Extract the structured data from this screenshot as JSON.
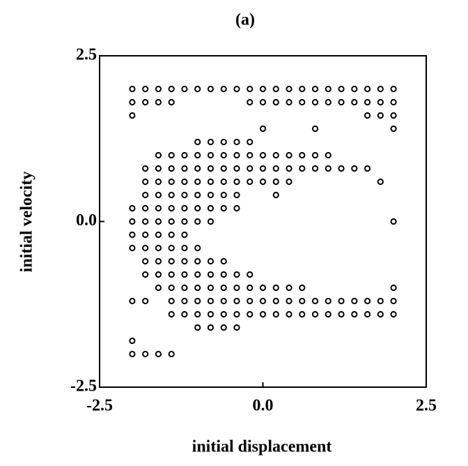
{
  "chart_data": {
    "type": "scatter",
    "title": "(a)",
    "x_label": "initial displacement",
    "y_label": "initial velocity",
    "xlim": [
      -2.5,
      2.5
    ],
    "ylim": [
      -2.5,
      2.5
    ],
    "xticks": [
      -2.5,
      {
        "value": 0,
        "label": "0.0"
      },
      2.5
    ],
    "yticks": [
      -2.5,
      {
        "value": 0,
        "label": "0.0"
      },
      2.5
    ],
    "color": "#000000",
    "x": [
      -2,
      -1.8,
      -1.6,
      -1.4,
      -1.2,
      -1,
      -0.8,
      -0.6,
      -0.4,
      -0.2,
      0,
      0.2,
      0.4,
      0.6,
      0.8,
      1,
      1.2,
      1.4,
      1.6,
      1.8,
      2,
      -2,
      -1.8,
      -1.6,
      -1.4,
      -0.2,
      0,
      0.2,
      0.4,
      0.6,
      0.8,
      1,
      1.2,
      1.4,
      1.6,
      1.8,
      2,
      -2,
      1.6,
      1.8,
      2,
      0,
      0.8,
      2,
      -1,
      -0.8,
      -0.6,
      -0.4,
      -0.2,
      -1.6,
      -1.4,
      -1.2,
      -1,
      -0.8,
      -0.6,
      -0.4,
      -0.2,
      0,
      0.2,
      0.4,
      0.6,
      0.8,
      1,
      -1.8,
      -1.6,
      -1.4,
      -1.2,
      -1,
      -0.8,
      -0.6,
      -0.4,
      -0.2,
      0,
      0.2,
      0.4,
      0.6,
      0.8,
      1,
      1.2,
      1.4,
      1.6,
      -1.8,
      -1.6,
      -1.4,
      -1.2,
      -1,
      -0.8,
      -0.6,
      -0.4,
      -0.2,
      0,
      0.2,
      0.4,
      1.8,
      -1.8,
      -1.6,
      -1.4,
      -1.2,
      -1,
      -0.8,
      -0.6,
      -0.4,
      0.2,
      -2,
      -1.8,
      -1.6,
      -1.4,
      -1.2,
      -1,
      -0.8,
      -0.6,
      -0.4,
      -2,
      -1.8,
      -1.6,
      -1.4,
      -1.2,
      -1,
      -0.8,
      2,
      -2,
      -1.8,
      -1.6,
      -1.4,
      -1.2,
      -2,
      -1.8,
      -1.6,
      -1.4,
      -1.2,
      -1,
      -1.8,
      -1.6,
      -1.4,
      -1.2,
      -1,
      -0.8,
      -0.6,
      -1.8,
      -1.6,
      -1.4,
      -1.2,
      -1,
      -0.8,
      -0.6,
      -0.4,
      -0.2,
      -1.6,
      -1.4,
      -1.2,
      -1,
      -0.8,
      -0.6,
      -0.4,
      -0.2,
      0,
      0.2,
      0.4,
      0.6,
      2,
      -2,
      -1.8,
      -1.4,
      -1.2,
      -1,
      -0.8,
      -0.6,
      -0.4,
      -0.2,
      0,
      0.2,
      0.4,
      0.6,
      0.8,
      1,
      1.2,
      1.4,
      1.6,
      1.8,
      2,
      -1.4,
      -1.2,
      -1,
      -0.8,
      -0.6,
      -0.4,
      -0.2,
      0,
      0.2,
      0.4,
      0.6,
      0.8,
      1,
      1.2,
      1.4,
      1.6,
      1.8,
      2,
      -1,
      -0.8,
      -0.6,
      -0.4,
      -2,
      -2,
      -1.8,
      -1.6,
      -1.4
    ],
    "y": [
      2,
      2,
      2,
      2,
      2,
      2,
      2,
      2,
      2,
      2,
      2,
      2,
      2,
      2,
      2,
      2,
      2,
      2,
      2,
      2,
      2,
      1.8,
      1.8,
      1.8,
      1.8,
      1.8,
      1.8,
      1.8,
      1.8,
      1.8,
      1.8,
      1.8,
      1.8,
      1.8,
      1.8,
      1.8,
      1.8,
      1.6,
      1.6,
      1.6,
      1.6,
      1.4,
      1.4,
      1.4,
      1.2,
      1.2,
      1.2,
      1.2,
      1.2,
      1,
      1,
      1,
      1,
      1,
      1,
      1,
      1,
      1,
      1,
      1,
      1,
      1,
      1,
      0.8,
      0.8,
      0.8,
      0.8,
      0.8,
      0.8,
      0.8,
      0.8,
      0.8,
      0.8,
      0.8,
      0.8,
      0.8,
      0.8,
      0.8,
      0.8,
      0.8,
      0.8,
      0.6,
      0.6,
      0.6,
      0.6,
      0.6,
      0.6,
      0.6,
      0.6,
      0.6,
      0.6,
      0.6,
      0.6,
      0.6,
      0.4,
      0.4,
      0.4,
      0.4,
      0.4,
      0.4,
      0.4,
      0.4,
      0.4,
      0.2,
      0.2,
      0.2,
      0.2,
      0.2,
      0.2,
      0.2,
      0.2,
      0.2,
      0,
      0,
      0,
      0,
      0,
      0,
      0,
      0,
      -0.2,
      -0.2,
      -0.2,
      -0.2,
      -0.2,
      -0.4,
      -0.4,
      -0.4,
      -0.4,
      -0.4,
      -0.4,
      -0.6,
      -0.6,
      -0.6,
      -0.6,
      -0.6,
      -0.6,
      -0.6,
      -0.8,
      -0.8,
      -0.8,
      -0.8,
      -0.8,
      -0.8,
      -0.8,
      -0.8,
      -0.8,
      -1,
      -1,
      -1,
      -1,
      -1,
      -1,
      -1,
      -1,
      -1,
      -1,
      -1,
      -1,
      -1,
      -1.2,
      -1.2,
      -1.2,
      -1.2,
      -1.2,
      -1.2,
      -1.2,
      -1.2,
      -1.2,
      -1.2,
      -1.2,
      -1.2,
      -1.2,
      -1.2,
      -1.2,
      -1.2,
      -1.2,
      -1.2,
      -1.2,
      -1.2,
      -1.4,
      -1.4,
      -1.4,
      -1.4,
      -1.4,
      -1.4,
      -1.4,
      -1.4,
      -1.4,
      -1.4,
      -1.4,
      -1.4,
      -1.4,
      -1.4,
      -1.4,
      -1.4,
      -1.4,
      -1.4,
      -1.6,
      -1.6,
      -1.6,
      -1.6,
      -1.8,
      -2,
      -2,
      -2,
      -2
    ]
  }
}
